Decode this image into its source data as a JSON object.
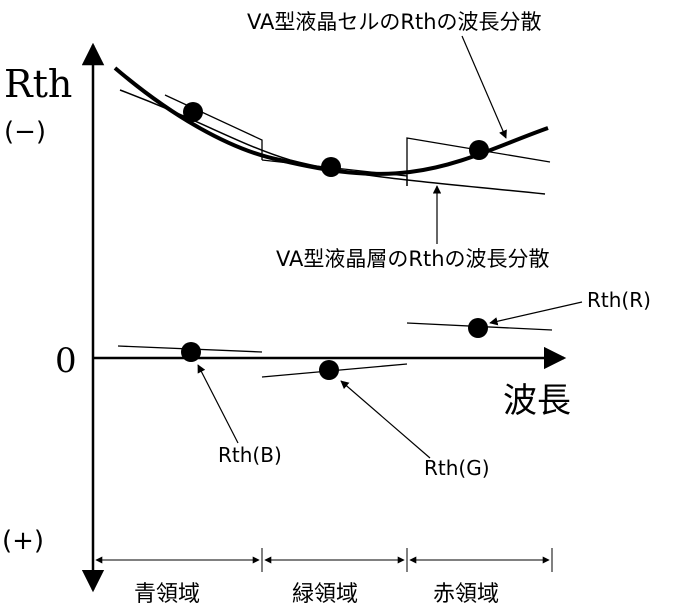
{
  "y_axis": {
    "title": "Rth",
    "top_sign": "(−)",
    "zero_label": "0",
    "bottom_sign": "(+)"
  },
  "x_axis": {
    "title": "波長",
    "regions": [
      "青領域",
      "緑領域",
      "赤領域"
    ]
  },
  "annotations": {
    "cell_curve": "VA型液晶セルのRthの波長分散",
    "layer_curve": "VA型液晶層のRthの波長分散",
    "rth_r": "Rth(R)",
    "rth_g": "Rth(G)",
    "rth_b": "Rth(B)"
  },
  "colors": {
    "ink": "#000000",
    "background": "#ffffff"
  }
}
